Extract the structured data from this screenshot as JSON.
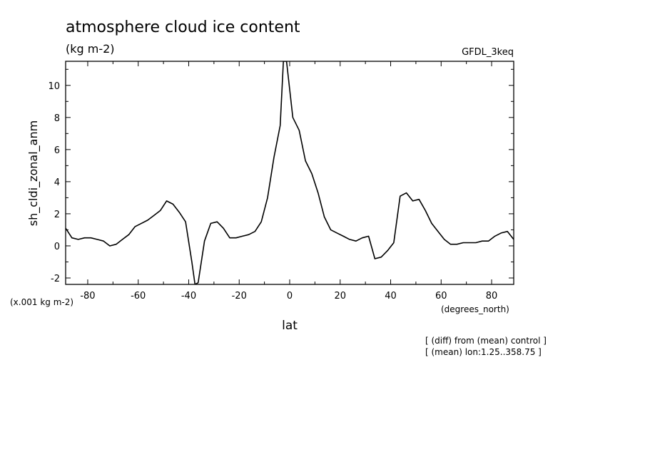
{
  "chart_data": {
    "type": "line",
    "title": "atmosphere cloud ice content",
    "subtitle": "(kg m-2)",
    "model": "GFDL_3keq",
    "xlabel": "lat",
    "x_units": "(degrees_north)",
    "ylabel": "sh_cldi_zonal_anm",
    "y_scale_note": "(x.001 kg m-2)",
    "notes": [
      "[ (diff) from (mean) control ]",
      "[ (mean) lon:1.25..358.75 ]"
    ],
    "xlim": [
      -88.75,
      88.75
    ],
    "ylim": [
      -2.4,
      11.5
    ],
    "xticks": [
      -80,
      -60,
      -40,
      -20,
      0,
      20,
      40,
      60,
      80
    ],
    "xtick_labels": [
      "-80",
      "-60",
      "-40",
      "-20",
      "0",
      "20",
      "40",
      "60",
      "80"
    ],
    "yticks": [
      -2,
      0,
      2,
      4,
      6,
      8,
      10
    ],
    "ytick_labels": [
      "-2",
      "0",
      "2",
      "4",
      "6",
      "8",
      "10"
    ],
    "grid": false,
    "series": [
      {
        "x": [
          -88.75,
          -86.25,
          -83.75,
          -81.25,
          -78.75,
          -76.25,
          -73.75,
          -71.25,
          -68.75,
          -66.25,
          -63.75,
          -61.25,
          -58.75,
          -56.25,
          -53.75,
          -51.25,
          -48.75,
          -46.25,
          -43.75,
          -41.25,
          -38.75,
          -37.5,
          -36.25,
          -33.75,
          -31.25,
          -28.75,
          -26.25,
          -23.75,
          -21.25,
          -18.75,
          -16.25,
          -13.75,
          -11.25,
          -8.75,
          -6.25,
          -3.75,
          -2.5,
          -1.25,
          1.25,
          3.75,
          6.25,
          8.75,
          11.25,
          13.75,
          16.25,
          18.75,
          21.25,
          23.75,
          26.25,
          28.75,
          31.25,
          33.75,
          36.25,
          38.75,
          41.25,
          43.75,
          46.25,
          48.75,
          51.25,
          53.75,
          56.25,
          58.75,
          61.25,
          63.75,
          66.25,
          68.75,
          71.25,
          73.75,
          76.25,
          78.75,
          81.25,
          83.75,
          86.25,
          88.75
        ],
        "y": [
          1.1,
          0.5,
          0.4,
          0.5,
          0.5,
          0.4,
          0.3,
          0.0,
          0.1,
          0.4,
          0.7,
          1.2,
          1.4,
          1.6,
          1.9,
          2.2,
          2.8,
          2.6,
          2.1,
          1.5,
          -1.0,
          -2.4,
          -2.3,
          0.3,
          1.4,
          1.5,
          1.1,
          0.5,
          0.5,
          0.6,
          0.7,
          0.9,
          1.5,
          3.0,
          5.5,
          7.5,
          11.5,
          11.5,
          8.0,
          7.2,
          5.3,
          4.5,
          3.3,
          1.8,
          1.0,
          0.8,
          0.6,
          0.4,
          0.3,
          0.5,
          0.6,
          -0.8,
          -0.7,
          -0.3,
          0.2,
          3.1,
          3.3,
          2.8,
          2.9,
          2.2,
          1.4,
          0.9,
          0.4,
          0.1,
          0.1,
          0.2,
          0.2,
          0.2,
          0.3,
          0.3,
          0.6,
          0.8,
          0.9,
          0.4
        ]
      }
    ]
  }
}
